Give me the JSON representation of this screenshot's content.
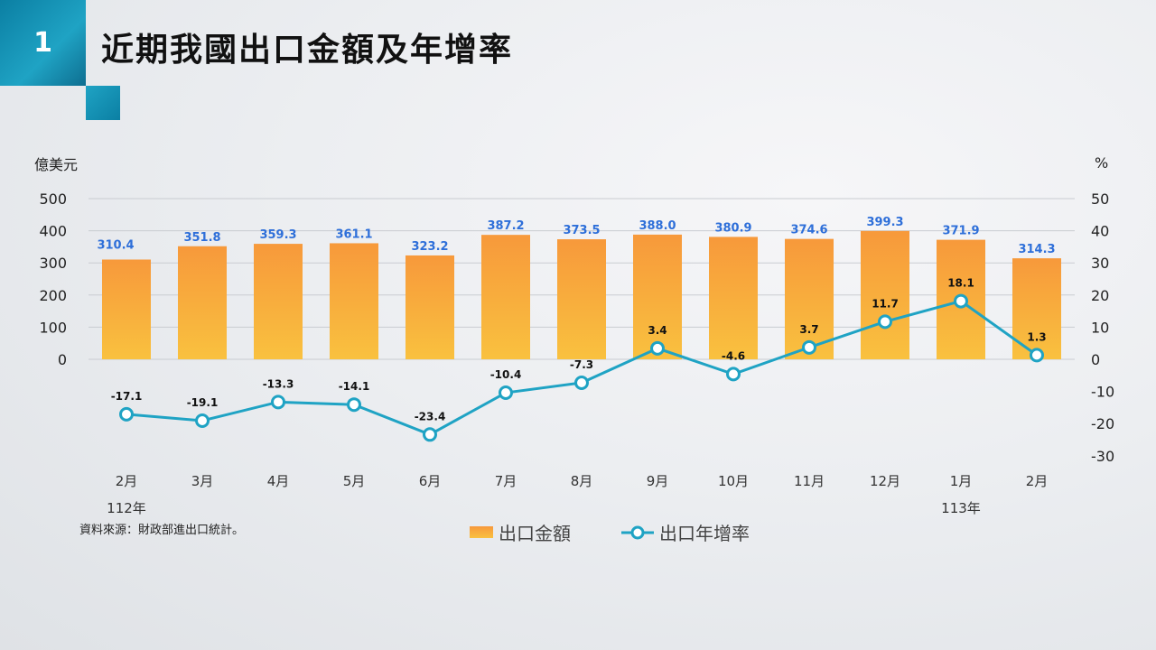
{
  "header": {
    "badge_number": "1",
    "title": "近期我國出口金額及年增率"
  },
  "source_note": "資料來源：財政部進出口統計。",
  "legend": {
    "bars": "出口金額",
    "line": "出口年增率"
  },
  "colors": {
    "accent": "#1fa3c4",
    "bar_top": "#f7993b",
    "bar_bottom": "#f9c13f",
    "bar_label": "#2e6fd9"
  },
  "chart_data": {
    "type": "bar+line",
    "categories": [
      "2月",
      "3月",
      "4月",
      "5月",
      "6月",
      "7月",
      "8月",
      "9月",
      "10月",
      "11月",
      "12月",
      "1月",
      "2月"
    ],
    "year_labels": [
      {
        "index": 0,
        "label": "112年"
      },
      {
        "index": 11,
        "label": "113年"
      }
    ],
    "series": [
      {
        "name": "出口金額",
        "type": "bar",
        "axis": "left",
        "values": [
          310.4,
          351.8,
          359.3,
          361.1,
          323.2,
          387.2,
          373.5,
          388.0,
          380.9,
          374.6,
          399.3,
          371.9,
          314.3
        ],
        "labels": [
          "310.4",
          "351.8",
          "359.3",
          "361.1",
          "323.2",
          "387.2",
          "373.5",
          "388.0",
          "380.9",
          "374.6",
          "399.3",
          "371.9",
          "314.3"
        ]
      },
      {
        "name": "出口年增率",
        "type": "line",
        "axis": "right",
        "values": [
          -17.1,
          -19.1,
          -13.3,
          -14.1,
          -23.4,
          -10.4,
          -7.3,
          3.4,
          -4.6,
          3.7,
          11.7,
          18.1,
          1.3
        ],
        "labels": [
          "-17.1",
          "-19.1",
          "-13.3",
          "-14.1",
          "-23.4",
          "-10.4",
          "-7.3",
          "3.4",
          "-4.6",
          "3.7",
          "11.7",
          "18.1",
          "1.3"
        ]
      }
    ],
    "left_axis": {
      "unit": "億美元",
      "ticks": [
        0,
        100,
        200,
        300,
        400,
        500
      ],
      "tick_labels": [
        "0",
        "100",
        "200",
        "300",
        "400",
        "500"
      ],
      "ylim": [
        -350,
        500
      ]
    },
    "right_axis": {
      "unit": "%",
      "ticks": [
        -30,
        -20,
        -10,
        0,
        10,
        20,
        30,
        40,
        50
      ],
      "tick_labels": [
        "-30",
        "-20",
        "-10",
        "0",
        "10",
        "20",
        "30",
        "40",
        "50"
      ],
      "ylim": [
        -35,
        50
      ]
    },
    "grid": true,
    "legend_position": "bottom"
  }
}
